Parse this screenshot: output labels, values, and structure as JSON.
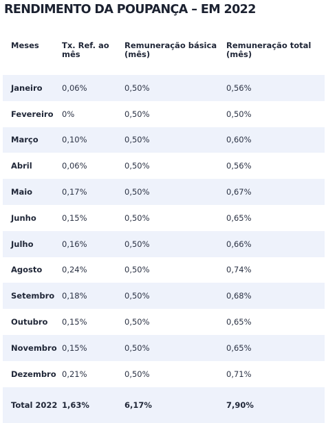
{
  "title": "RENDIMENTO DA POUPANÇA – EM 2022",
  "table": {
    "headers": [
      "Meses",
      "Tx. Ref. ao mês",
      "Remuneração básica (mês)",
      "Remuneração total (mês)"
    ],
    "rows": [
      {
        "month": "Janeiro",
        "tr": "0,06%",
        "basic": "0,50%",
        "total": "0,56%"
      },
      {
        "month": "Fevereiro",
        "tr": "0%",
        "basic": "0,50%",
        "total": "0,50%"
      },
      {
        "month": "Março",
        "tr": "0,10%",
        "basic": "0,50%",
        "total": "0,60%"
      },
      {
        "month": "Abril",
        "tr": "0,06%",
        "basic": "0,50%",
        "total": "0,56%"
      },
      {
        "month": "Maio",
        "tr": "0,17%",
        "basic": "0,50%",
        "total": "0,67%"
      },
      {
        "month": "Junho",
        "tr": "0,15%",
        "basic": "0,50%",
        "total": "0,65%"
      },
      {
        "month": "Julho",
        "tr": "0,16%",
        "basic": "0,50%",
        "total": "0,66%"
      },
      {
        "month": "Agosto",
        "tr": "0,24%",
        "basic": "0,50%",
        "total": "0,74%"
      },
      {
        "month": "Setembro",
        "tr": "0,18%",
        "basic": "0,50%",
        "total": "0,68%"
      },
      {
        "month": "Outubro",
        "tr": "0,15%",
        "basic": "0,50%",
        "total": "0,65%"
      },
      {
        "month": "Novembro",
        "tr": "0,15%",
        "basic": "0,50%",
        "total": "0,65%"
      },
      {
        "month": "Dezembro",
        "tr": "0,21%",
        "basic": "0,50%",
        "total": "0,71%"
      }
    ],
    "total": {
      "label": "Total 2022",
      "tr": "1,63%",
      "basic": "6,17%",
      "total": "7,90%"
    }
  },
  "colors": {
    "stripe": "#eef2fb",
    "text": "#1f2637"
  }
}
